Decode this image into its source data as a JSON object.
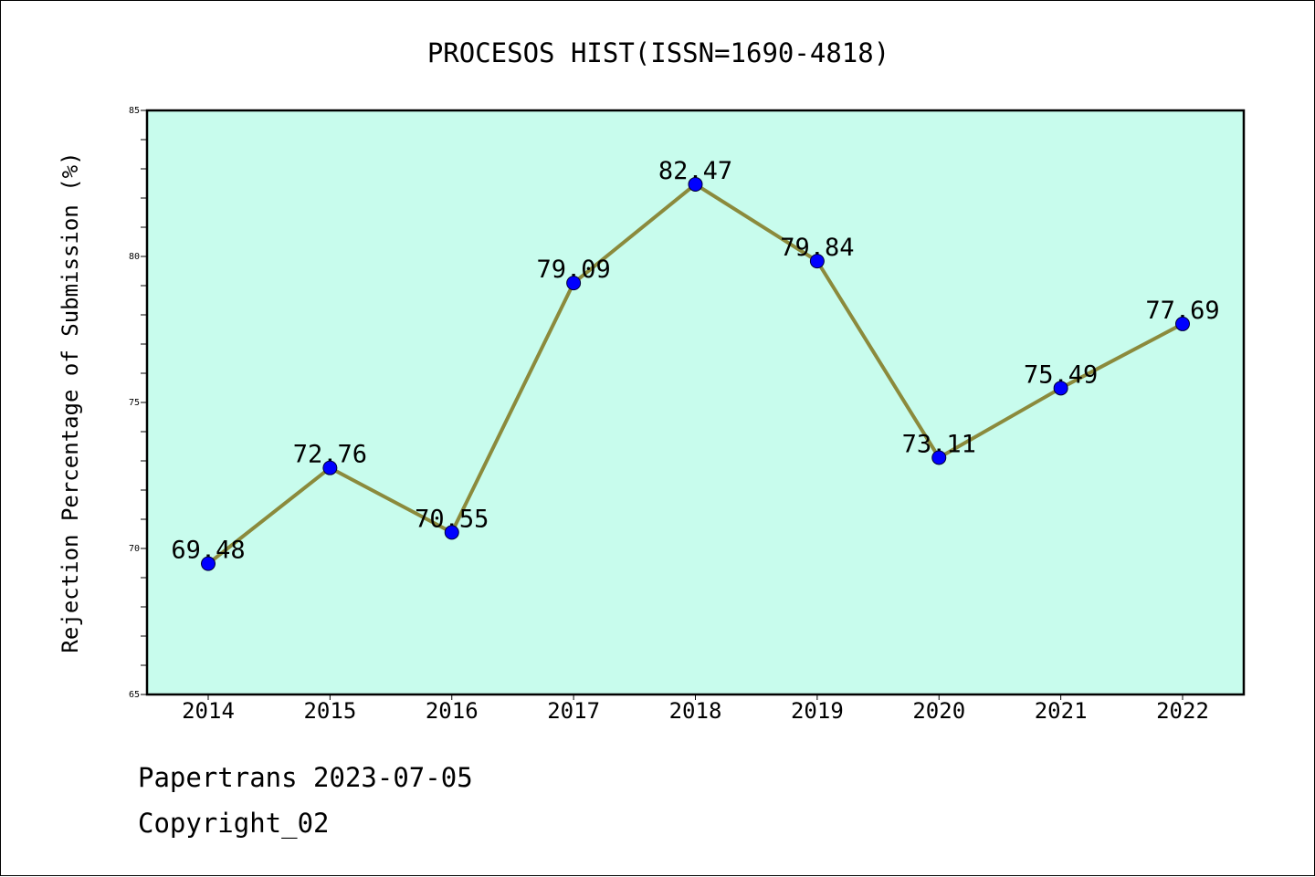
{
  "chart_data": {
    "type": "line",
    "title": "PROCESOS HIST(ISSN=1690-4818)",
    "xlabel": "",
    "ylabel": "Rejection Percentage of Submission (%)",
    "categories": [
      "2014",
      "2015",
      "2016",
      "2017",
      "2018",
      "2019",
      "2020",
      "2021",
      "2022"
    ],
    "values": [
      69.48,
      72.76,
      70.55,
      79.09,
      82.47,
      79.84,
      73.11,
      75.49,
      77.69
    ],
    "data_labels": [
      "69.48",
      "72.76",
      "70.55",
      "79.09",
      "82.47",
      "79.84",
      "73.11",
      "75.49",
      "77.69"
    ],
    "ylim": [
      65,
      85
    ],
    "y_ticks": [
      "65",
      "70",
      "75",
      "80",
      "85"
    ],
    "grid": false,
    "legend": "none",
    "colors": {
      "plot_background": "#c8fced",
      "line": "#8b8a3c",
      "marker": "#0000ff"
    }
  },
  "footer": {
    "line1": "Papertrans 2023-07-05",
    "line2": "Copyright_02"
  }
}
